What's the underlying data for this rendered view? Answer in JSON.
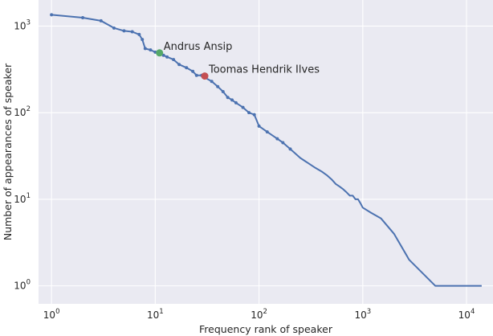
{
  "chart_data": {
    "type": "line",
    "xlabel": "Frequency rank of speaker",
    "ylabel": "Number of appearances of speaker",
    "xscale": "log",
    "yscale": "log",
    "xlim": [
      0.75,
      18000
    ],
    "ylim": [
      0.62,
      2000
    ],
    "grid": true,
    "xticks": [
      1,
      10,
      100,
      1000,
      10000
    ],
    "xtick_labels": [
      {
        "base": "10",
        "exp": "0"
      },
      {
        "base": "10",
        "exp": "1"
      },
      {
        "base": "10",
        "exp": "2"
      },
      {
        "base": "10",
        "exp": "3"
      },
      {
        "base": "10",
        "exp": "4"
      }
    ],
    "yticks": [
      1,
      10,
      100,
      1000
    ],
    "ytick_labels": [
      {
        "base": "10",
        "exp": "0"
      },
      {
        "base": "10",
        "exp": "1"
      },
      {
        "base": "10",
        "exp": "2"
      },
      {
        "base": "10",
        "exp": "3"
      }
    ],
    "series": [
      {
        "color": "#4c72b0",
        "x": [
          1,
          2,
          3,
          4,
          5,
          6,
          7,
          7.5,
          8,
          9,
          10,
          11,
          12,
          13,
          15,
          17,
          20,
          23,
          25,
          28,
          30,
          35,
          40,
          45,
          50,
          55,
          60,
          70,
          80,
          90,
          100,
          120,
          150,
          170,
          200,
          250,
          300,
          350,
          400,
          450,
          500,
          550,
          600,
          650,
          700,
          750,
          800,
          850,
          900,
          950,
          1000,
          1000,
          1200,
          1200,
          1500,
          1500,
          2000,
          2000,
          2800,
          2800,
          5000,
          5000,
          14000
        ],
        "y": [
          1350,
          1250,
          1150,
          950,
          880,
          860,
          800,
          700,
          550,
          530,
          500,
          490,
          460,
          440,
          410,
          360,
          330,
          300,
          270,
          270,
          255,
          230,
          200,
          175,
          150,
          140,
          130,
          115,
          100,
          95,
          70,
          60,
          50,
          45,
          38,
          30,
          26,
          23,
          21,
          19,
          17,
          15,
          14,
          13,
          12,
          11,
          11,
          10,
          10,
          9,
          8,
          8,
          7,
          7,
          6,
          6,
          4,
          4,
          2,
          2,
          1,
          1,
          1
        ]
      }
    ],
    "annotations": [
      {
        "label": "Andrus Ansip",
        "x": 11,
        "y": 490,
        "color": "#55a868"
      },
      {
        "label": "Toomas Hendrik Ilves",
        "x": 30,
        "y": 265,
        "color": "#c44e52"
      }
    ]
  }
}
